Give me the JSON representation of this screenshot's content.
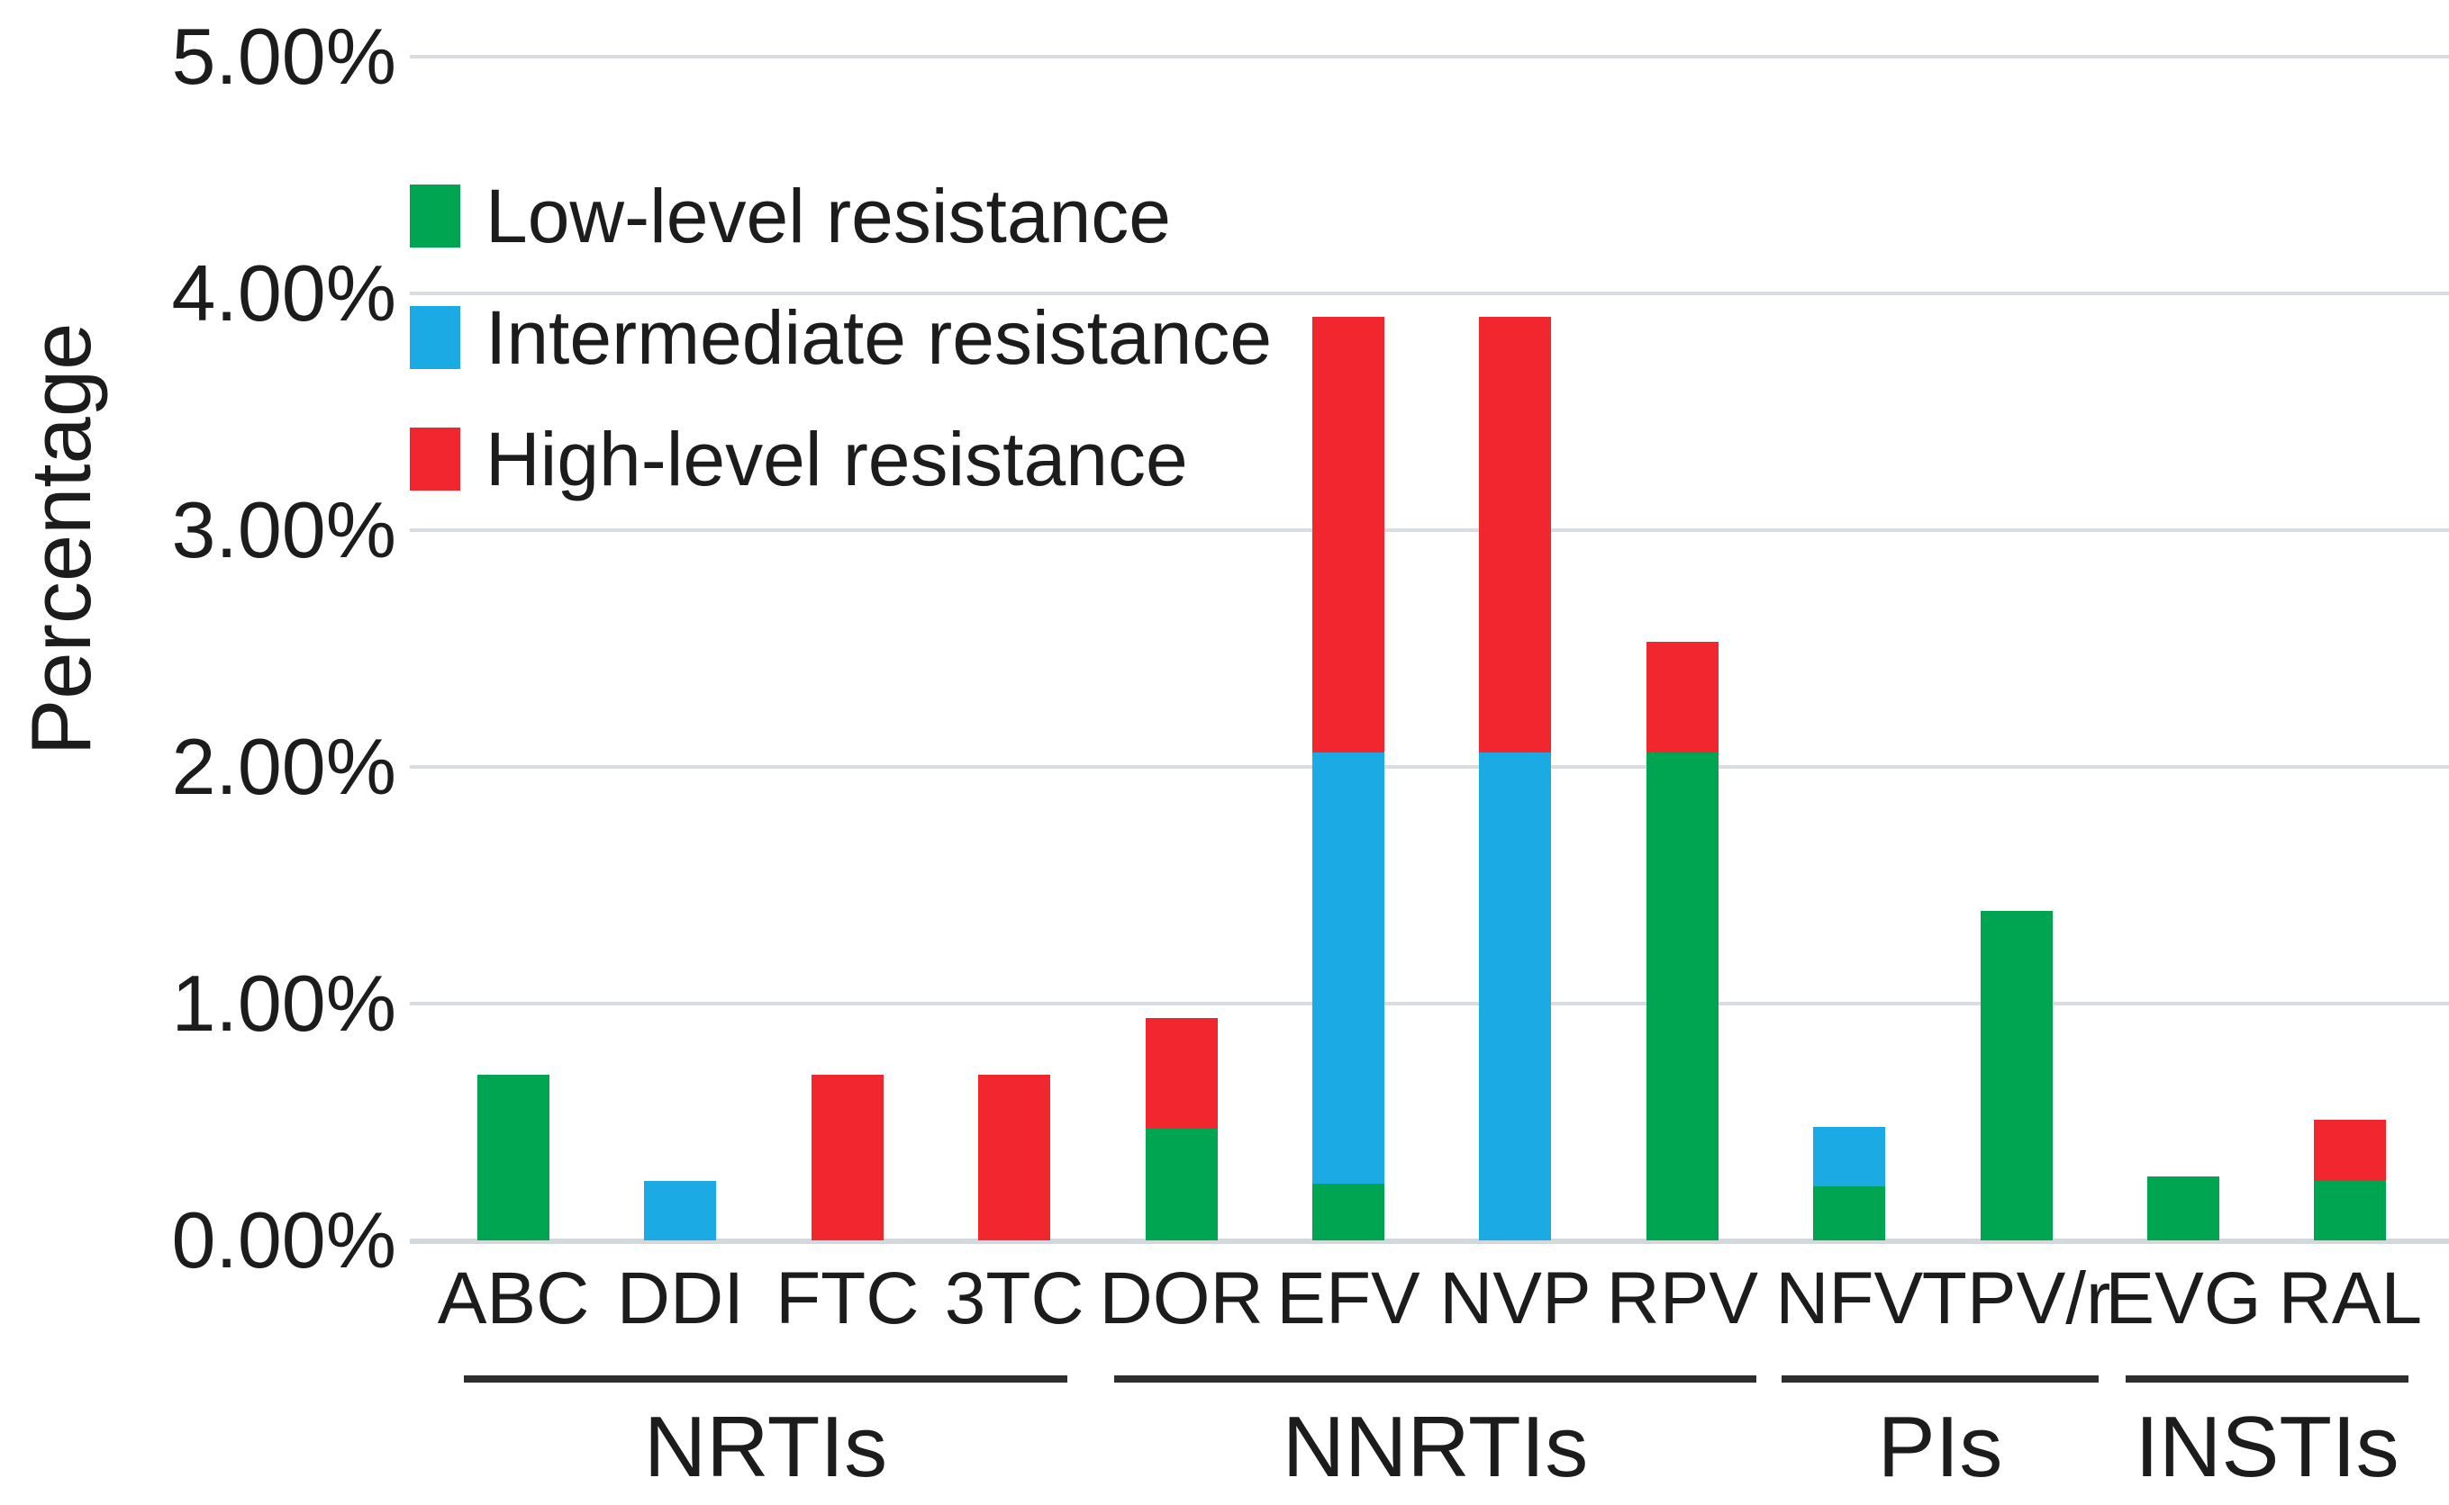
{
  "figure": {
    "background": "#ffffff",
    "text_color": "#1c1c1c",
    "gridline_color": "#d9dde1"
  },
  "y_axis": {
    "label": "Percentage",
    "tick_labels": [
      "5.00%",
      "4.00%",
      "3.00%",
      "2.00%",
      "1.00%",
      "0.00%"
    ],
    "min": 0,
    "max": 5,
    "units": "%"
  },
  "legend": {
    "entries": [
      {
        "label": "Low-level resistance",
        "color": "#00a551"
      },
      {
        "label": "Intermediate resistance",
        "color": "#1caae5"
      },
      {
        "label": "High-level resistance",
        "color": "#f2262e"
      }
    ]
  },
  "chart_data": {
    "type": "bar",
    "stacked": true,
    "title": "",
    "xlabel": "",
    "ylabel": "Percentage",
    "ylim": [
      0,
      5
    ],
    "units": "%",
    "grid": true,
    "legend_position": "upper-left-inside",
    "y_ticks": [
      "5.00%",
      "4.00%",
      "3.00%",
      "2.00%",
      "1.00%",
      "0.00%"
    ],
    "categories": [
      "ABC",
      "DDI",
      "FTC",
      "3TC",
      "DOR",
      "EFV",
      "NVP",
      "RPV",
      "NFV",
      "TPV/r",
      "EVG",
      "RAL"
    ],
    "series": [
      {
        "name": "Low-level resistance",
        "color": "#00a551",
        "values": [
          0.7,
          0,
          0,
          0,
          0.47,
          0.24,
          0,
          2.06,
          0.23,
          1.39,
          0.27,
          0.25
        ]
      },
      {
        "name": "Intermediate resistance",
        "color": "#1caae5",
        "values": [
          0,
          0.25,
          0,
          0,
          0,
          1.82,
          2.06,
          0,
          0.25,
          0,
          0,
          0
        ]
      },
      {
        "name": "High-level resistance",
        "color": "#f2262e",
        "values": [
          0,
          0,
          0.7,
          0.7,
          0.47,
          1.84,
          1.84,
          0.47,
          0,
          0,
          0,
          0.26
        ]
      }
    ],
    "totals": [
      0.7,
      0.25,
      0.7,
      0.7,
      0.94,
      3.9,
      3.9,
      2.53,
      0.48,
      1.39,
      0.27,
      0.51
    ],
    "groups": [
      {
        "label": "NRTIs",
        "categories": [
          "ABC",
          "DDI",
          "FTC",
          "3TC"
        ]
      },
      {
        "label": "NNRTIs",
        "categories": [
          "DOR",
          "EFV",
          "NVP",
          "RPV"
        ]
      },
      {
        "label": "PIs",
        "categories": [
          "NFV",
          "TPV/r"
        ]
      },
      {
        "label": "INSTIs",
        "categories": [
          "EVG",
          "RAL"
        ]
      }
    ]
  }
}
